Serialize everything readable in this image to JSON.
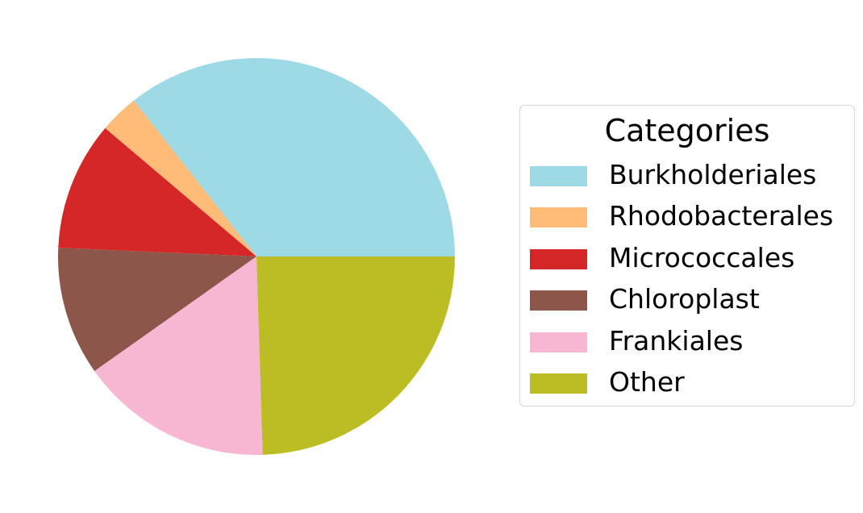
{
  "chart_data": {
    "type": "pie",
    "legend_title": "Categories",
    "legend_position": "right",
    "start_angle_deg": 0,
    "direction": "counterclockwise",
    "slices": [
      {
        "label": "Burkholderiales",
        "value": 35.6,
        "color": "#9edae5"
      },
      {
        "label": "Rhodobacterales",
        "value": 3.2,
        "color": "#ffbb78"
      },
      {
        "label": "Micrococcales",
        "value": 10.5,
        "color": "#d62728"
      },
      {
        "label": "Chloroplast",
        "value": 10.5,
        "color": "#8c564b"
      },
      {
        "label": "Frankiales",
        "value": 15.7,
        "color": "#f7b6d2"
      },
      {
        "label": "Other",
        "value": 24.5,
        "color": "#bcbd22"
      }
    ]
  }
}
